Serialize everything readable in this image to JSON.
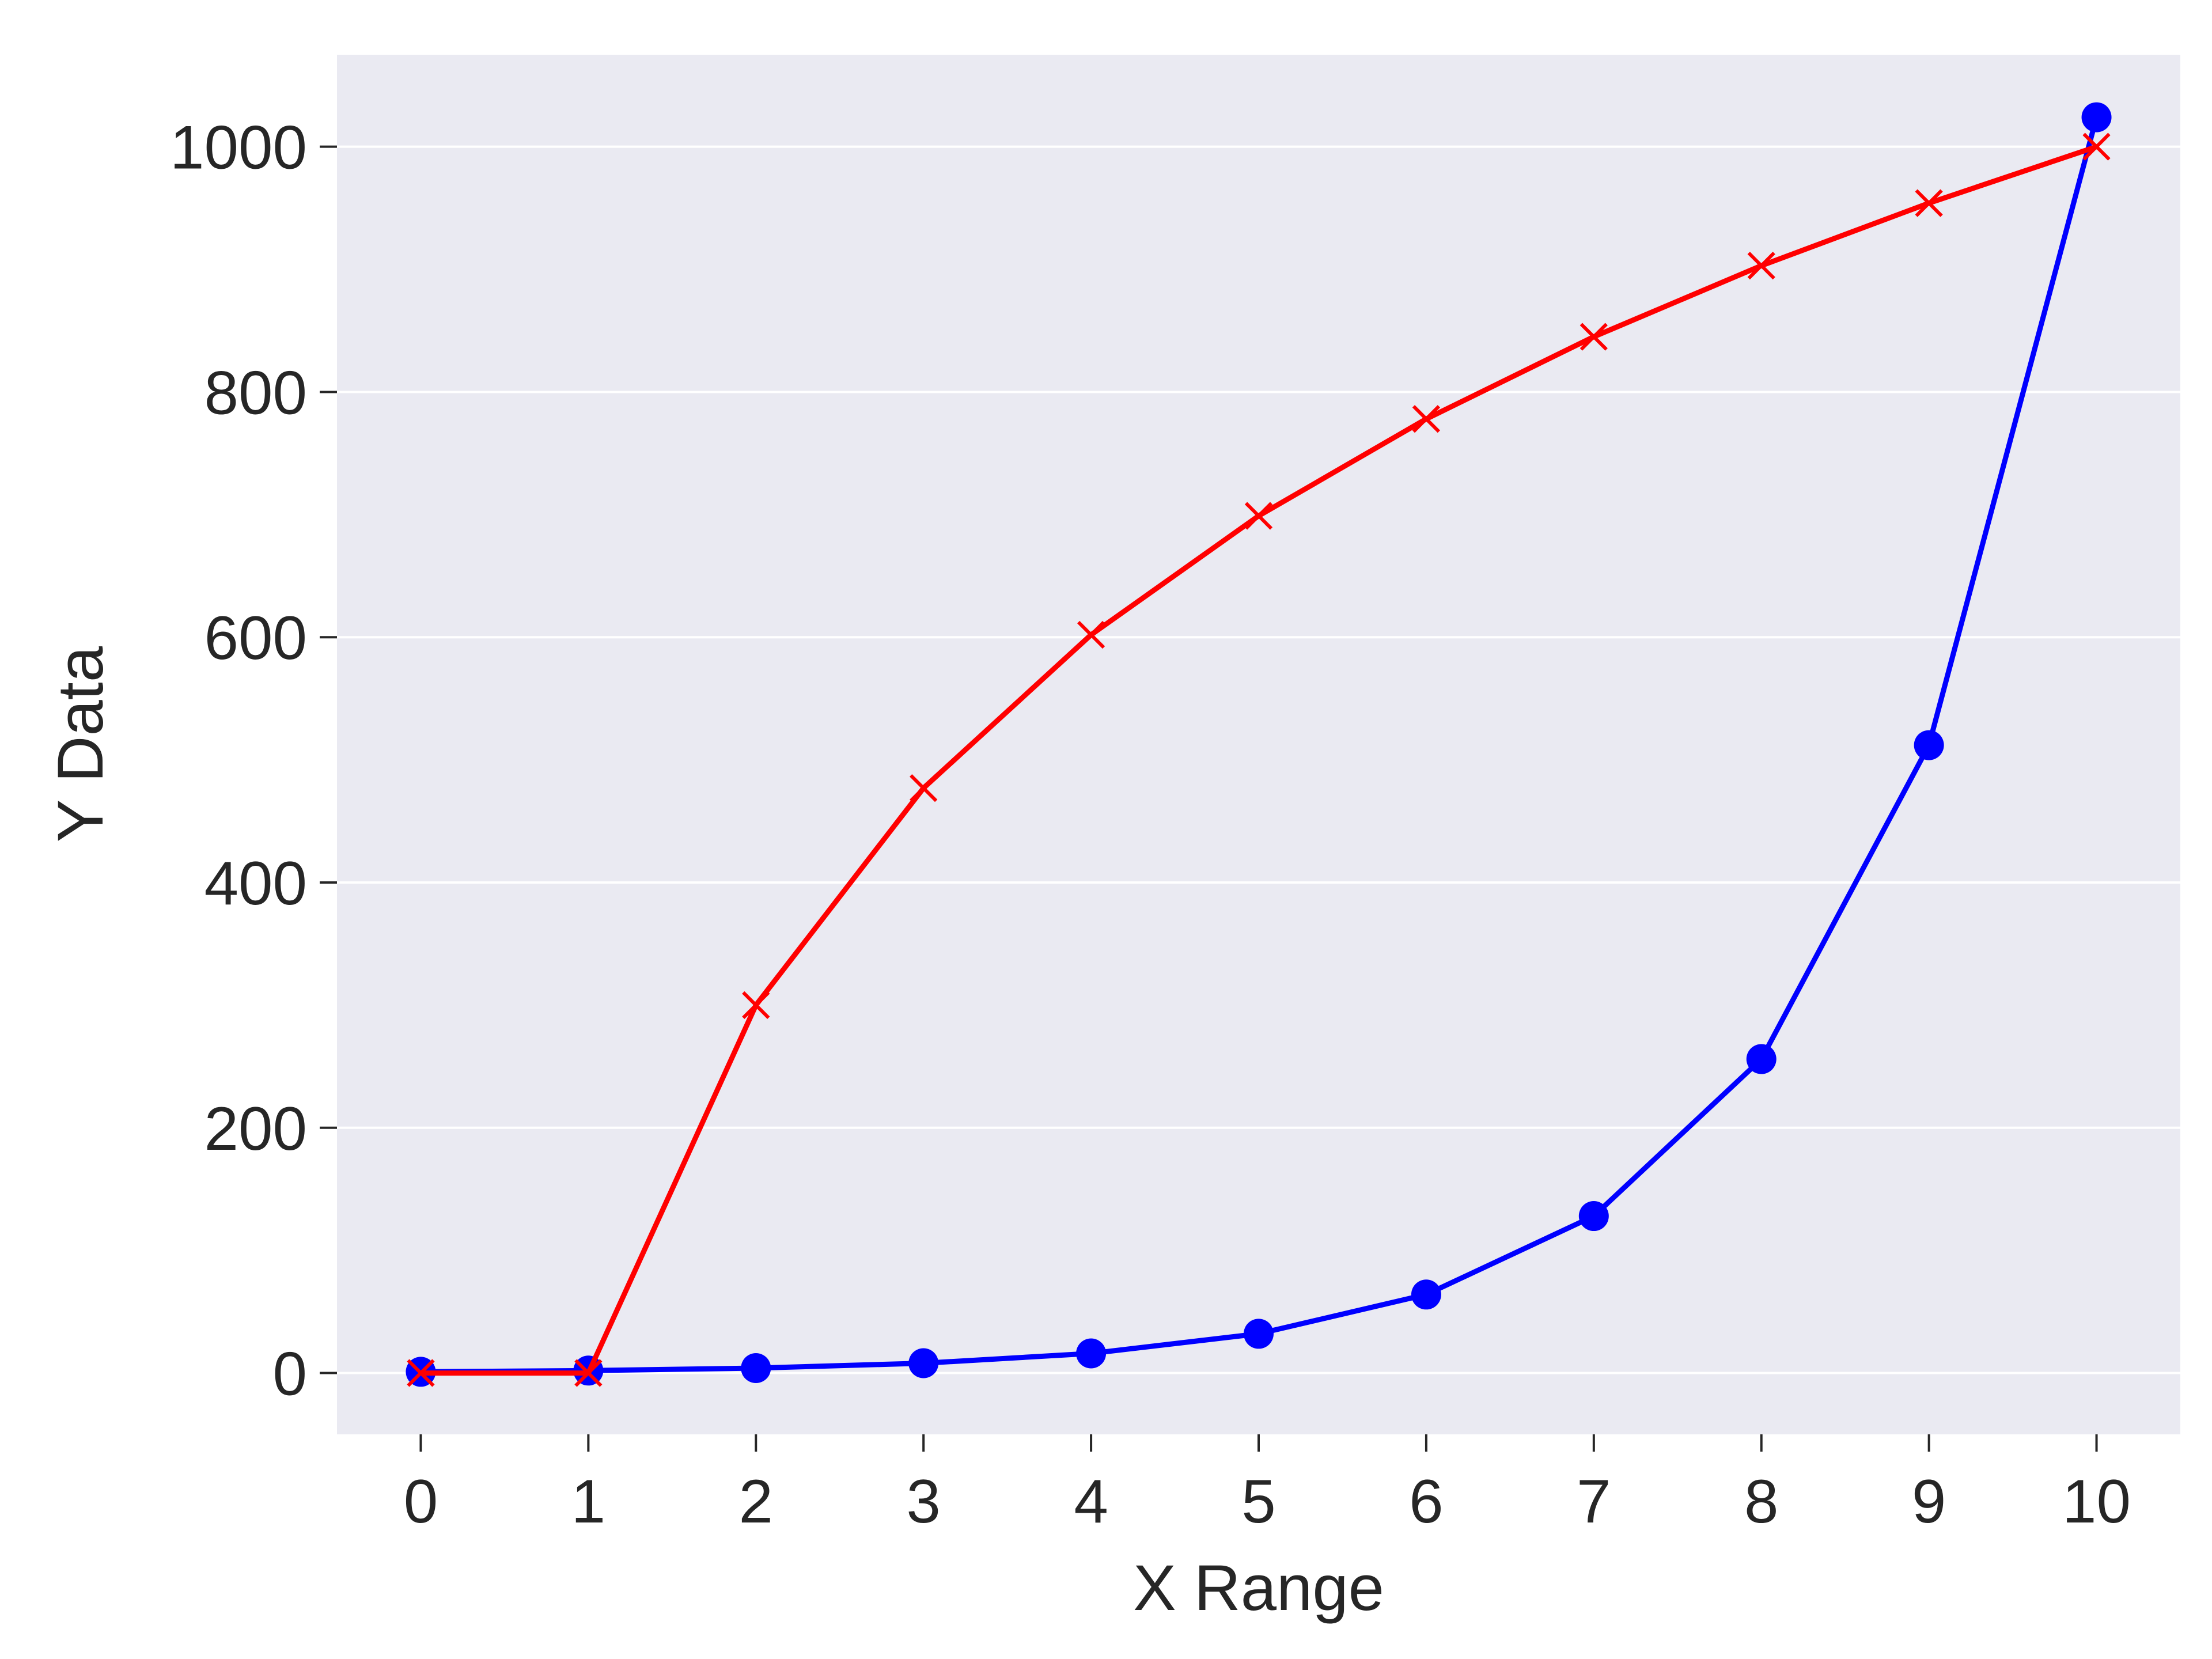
{
  "chart_data": {
    "type": "line",
    "xlabel": "X Range",
    "ylabel": "Y Data",
    "xlim": [
      -0.5,
      10.5
    ],
    "ylim": [
      -50,
      1075
    ],
    "xticks": [
      0,
      1,
      2,
      3,
      4,
      5,
      6,
      7,
      8,
      9,
      10
    ],
    "yticks": [
      0,
      200,
      400,
      600,
      800,
      1000
    ],
    "grid": "horizontal",
    "background": "#eaeaf2",
    "x": [
      0,
      1,
      2,
      3,
      4,
      5,
      6,
      7,
      8,
      9,
      10
    ],
    "series": [
      {
        "color": "#0000ff",
        "marker": "circle",
        "values": [
          1,
          2,
          4,
          8,
          16,
          32,
          64,
          128,
          256,
          512,
          1024
        ]
      },
      {
        "color": "#ff0000",
        "marker": "x",
        "values": [
          0,
          0,
          300,
          477,
          602,
          699,
          778,
          845,
          903,
          954,
          1000
        ]
      }
    ]
  }
}
